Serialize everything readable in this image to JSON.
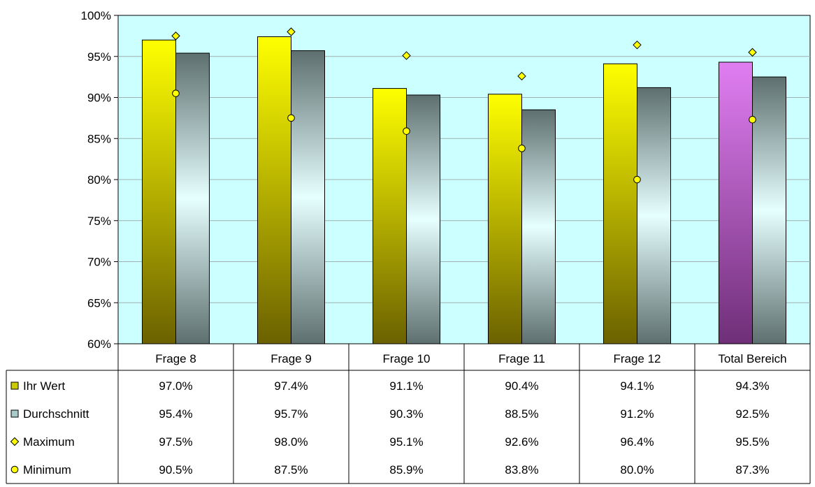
{
  "chart_data": {
    "type": "bar",
    "categories": [
      "Frage 8",
      "Frage 9",
      "Frage 10",
      "Frage 11",
      "Frage 12",
      "Total Bereich"
    ],
    "ylim": [
      60,
      100
    ],
    "yticks": [
      60,
      65,
      70,
      75,
      80,
      85,
      90,
      95,
      100
    ],
    "ytick_labels": [
      "60%",
      "65%",
      "70%",
      "75%",
      "80%",
      "85%",
      "90%",
      "95%",
      "100%"
    ],
    "grid": true,
    "legend": "table-left",
    "series": [
      {
        "name": "Ihr Wert",
        "kind": "bar",
        "values": [
          97.0,
          97.4,
          91.1,
          90.4,
          94.1,
          94.3
        ],
        "labels": [
          "97.0%",
          "97.4%",
          "91.1%",
          "90.4%",
          "94.1%",
          "94.3%"
        ]
      },
      {
        "name": "Durchschnitt",
        "kind": "bar",
        "values": [
          95.4,
          95.7,
          90.3,
          88.5,
          91.2,
          92.5
        ],
        "labels": [
          "95.4%",
          "95.7%",
          "90.3%",
          "88.5%",
          "91.2%",
          "92.5%"
        ]
      },
      {
        "name": "Maximum",
        "kind": "marker-diamond",
        "values": [
          97.5,
          98.0,
          95.1,
          92.6,
          96.4,
          95.5
        ],
        "labels": [
          "97.5%",
          "98.0%",
          "95.1%",
          "92.6%",
          "96.4%",
          "95.5%"
        ]
      },
      {
        "name": "Minimum",
        "kind": "marker-circle",
        "values": [
          90.5,
          87.5,
          85.9,
          83.8,
          80.0,
          87.3
        ],
        "labels": [
          "90.5%",
          "87.5%",
          "85.9%",
          "83.8%",
          "80.0%",
          "87.3%"
        ]
      }
    ],
    "colors": {
      "plot_background": "#ccffff",
      "ihr_wert": "#ffff00",
      "ihr_wert_dark": "#6b6100",
      "total_highlight": "#e07ef2",
      "total_highlight_dark": "#6f2f78",
      "durchschnitt_dark": "#5e6f6f",
      "durchschnitt_light": "#e6ffff",
      "marker": "#ffff00",
      "grid": "#9fb0b0"
    }
  }
}
